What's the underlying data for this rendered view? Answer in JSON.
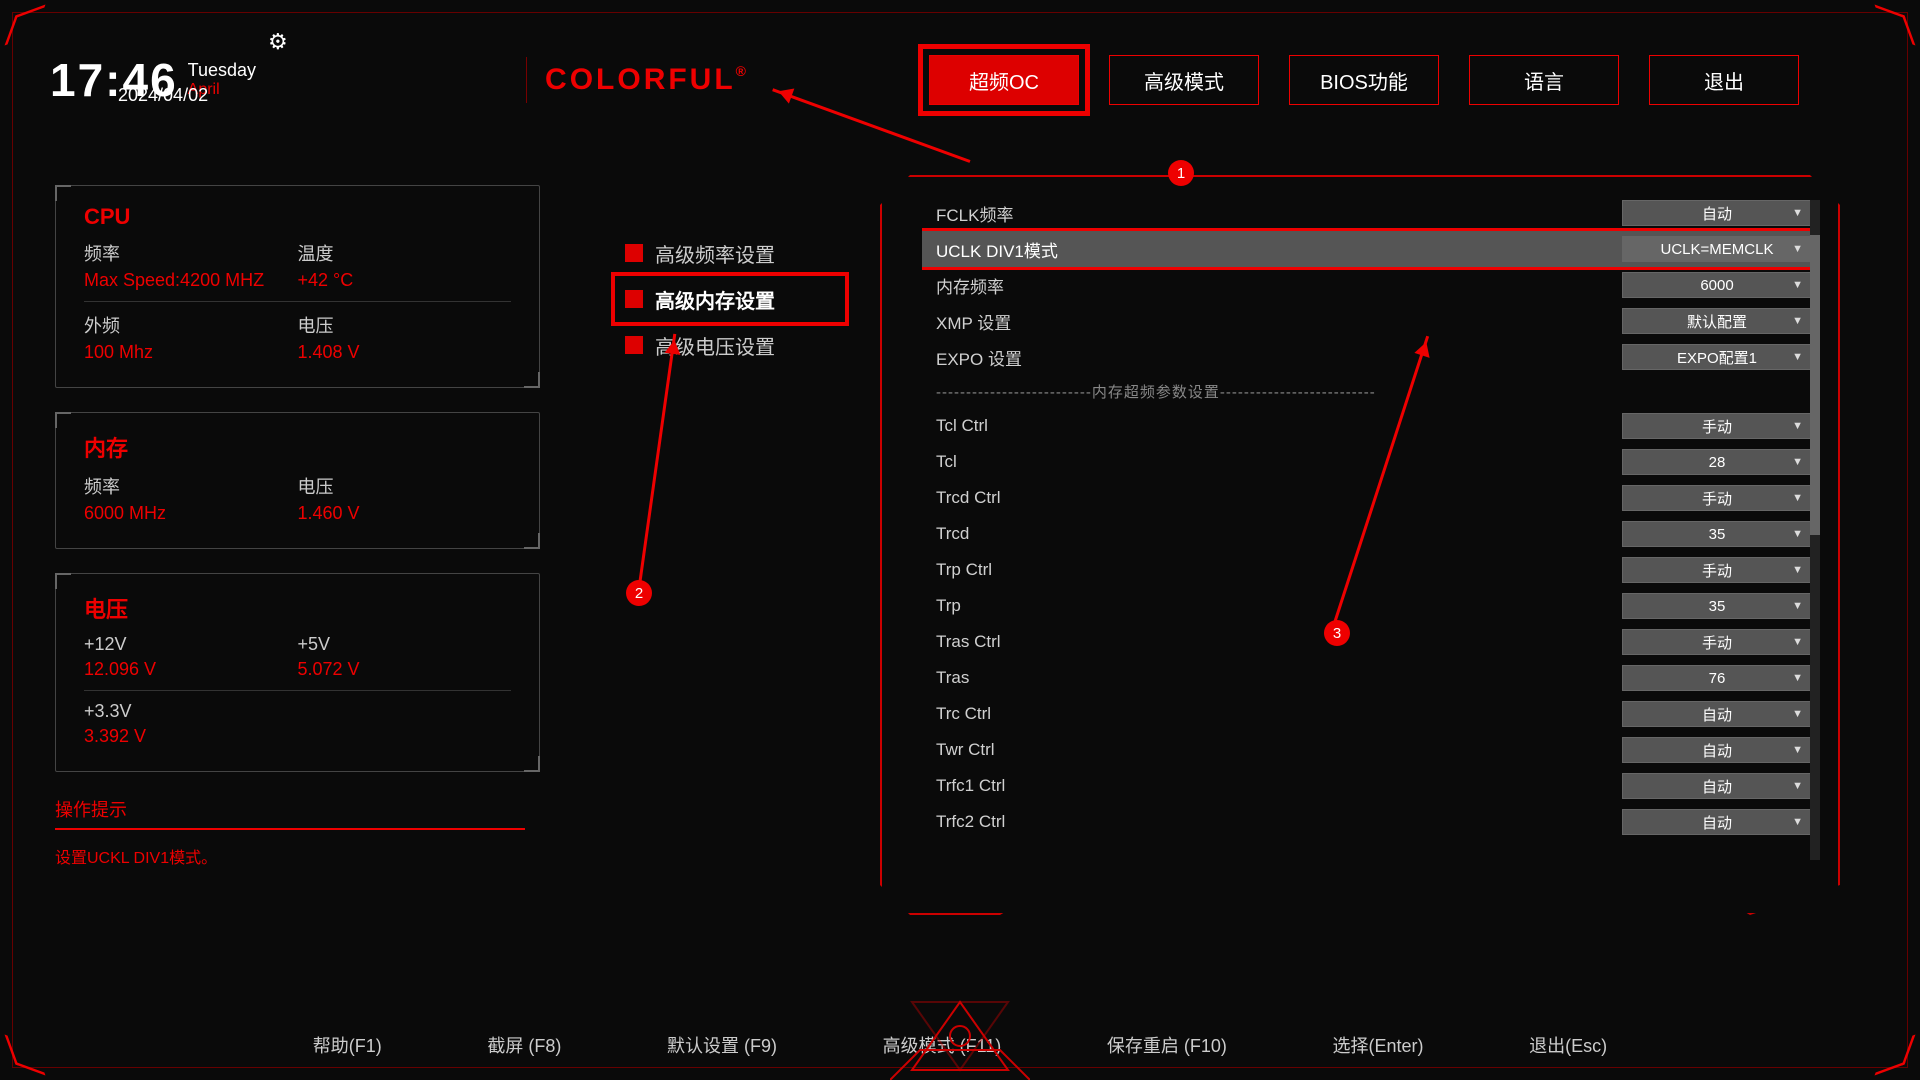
{
  "header": {
    "time": "17:46",
    "dow": "Tuesday",
    "month": "April",
    "date": "2024/04/02",
    "brand": "COLORFUL"
  },
  "tabs": {
    "oc": "超频OC",
    "advanced": "高级模式",
    "bios": "BIOS功能",
    "language": "语言",
    "exit": "退出"
  },
  "cards": {
    "cpu": {
      "title": "CPU",
      "freq_label": "频率",
      "freq_value": "Max Speed:4200 MHZ",
      "temp_label": "温度",
      "temp_value": "+42 °C",
      "extfreq_label": "外频",
      "extfreq_value": "100 Mhz",
      "volt_label": "电压",
      "volt_value": "1.408 V"
    },
    "mem": {
      "title": "内存",
      "freq_label": "频率",
      "freq_value": "6000 MHz",
      "volt_label": "电压",
      "volt_value": "1.460 V"
    },
    "volt": {
      "title": "电压",
      "v12_label": "+12V",
      "v12_value": "12.096 V",
      "v5_label": "+5V",
      "v5_value": "5.072 V",
      "v33_label": "+3.3V",
      "v33_value": "3.392 V"
    }
  },
  "hint": {
    "title": "操作提示",
    "text": "设置UCKL DIV1模式。"
  },
  "categories": {
    "freq": "高级频率设置",
    "mem": "高级内存设置",
    "volt": "高级电压设置"
  },
  "settings": [
    {
      "label": "FCLK频率",
      "value": "自动"
    },
    {
      "label": "UCLK DIV1模式",
      "value": "UCLK=MEMCLK",
      "selected": true,
      "highlighted": true
    },
    {
      "label": "内存频率",
      "value": "6000"
    },
    {
      "label": "XMP 设置",
      "value": "默认配置"
    },
    {
      "label": "EXPO 设置",
      "value": "EXPO配置1"
    }
  ],
  "settings_divider": "--------------------------内存超频参数设置--------------------------",
  "settings2": [
    {
      "label": "Tcl Ctrl",
      "value": "手动"
    },
    {
      "label": "Tcl",
      "value": "28"
    },
    {
      "label": "Trcd Ctrl",
      "value": "手动"
    },
    {
      "label": "Trcd",
      "value": "35"
    },
    {
      "label": "Trp Ctrl",
      "value": "手动"
    },
    {
      "label": "Trp",
      "value": "35"
    },
    {
      "label": "Tras Ctrl",
      "value": "手动"
    },
    {
      "label": "Tras",
      "value": "76"
    },
    {
      "label": "Trc Ctrl",
      "value": "自动"
    },
    {
      "label": "Twr Ctrl",
      "value": "自动"
    },
    {
      "label": "Trfc1 Ctrl",
      "value": "自动"
    },
    {
      "label": "Trfc2 Ctrl",
      "value": "自动"
    }
  ],
  "footer": {
    "help": "帮助(F1)",
    "screenshot": "截屏 (F8)",
    "defaults": "默认设置 (F9)",
    "advmode": "高级模式 (F11)",
    "saveexit": "保存重启 (F10)",
    "select": "选择(Enter)",
    "exit": "退出(Esc)"
  },
  "badges": {
    "b1": "1",
    "b2": "2",
    "b3": "3"
  },
  "colors": {
    "accent": "#e00000",
    "bg": "#0a0a0a",
    "panel_border": "#444444"
  }
}
